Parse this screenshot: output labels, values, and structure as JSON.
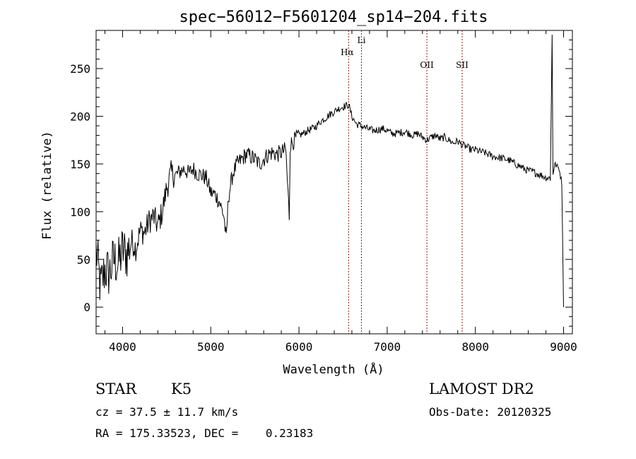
{
  "chart_data": {
    "type": "line",
    "title": "spec−56012−F5601204_sp14−204.fits",
    "xlabel": "Wavelength (Å)",
    "ylabel": "Flux (relative)",
    "xlim": [
      3700,
      9100
    ],
    "ylim": [
      -28,
      290
    ],
    "x_ticks": [
      4000,
      5000,
      6000,
      7000,
      8000,
      9000
    ],
    "y_ticks": [
      0,
      50,
      100,
      150,
      200,
      250
    ],
    "grid": false,
    "series": [
      {
        "x": [
          3700,
          3750,
          3800,
          3850,
          3900,
          3950,
          4000,
          4050,
          4100,
          4150,
          4200,
          4250,
          4300,
          4350,
          4400,
          4450,
          4500,
          4550,
          4600,
          4650,
          4700,
          4750,
          4800,
          4850,
          4900,
          4950,
          5000,
          5050,
          5100,
          5150,
          5175,
          5200,
          5250,
          5300,
          5350,
          5400,
          5450,
          5500,
          5550,
          5600,
          5650,
          5700,
          5750,
          5800,
          5850,
          5890,
          5900,
          5950,
          6000,
          6050,
          6100,
          6150,
          6200,
          6250,
          6300,
          6350,
          6400,
          6450,
          6500,
          6563,
          6600,
          6650,
          6700,
          6750,
          6800,
          6850,
          6900,
          6950,
          7000,
          7050,
          7100,
          7150,
          7200,
          7250,
          7300,
          7350,
          7400,
          7450,
          7500,
          7550,
          7600,
          7650,
          7700,
          7750,
          7800,
          7850,
          7900,
          7950,
          8000,
          8050,
          8100,
          8150,
          8200,
          8250,
          8300,
          8350,
          8400,
          8450,
          8500,
          8550,
          8600,
          8650,
          8700,
          8750,
          8800,
          8850,
          8870,
          8880,
          8900,
          8950,
          8980,
          9000
        ],
        "y": [
          60,
          20,
          40,
          35,
          50,
          45,
          60,
          55,
          70,
          62,
          80,
          78,
          90,
          95,
          85,
          100,
          125,
          140,
          138,
          142,
          145,
          140,
          145,
          140,
          138,
          135,
          120,
          118,
          110,
          95,
          70,
          115,
          140,
          150,
          155,
          160,
          158,
          155,
          150,
          155,
          160,
          162,
          160,
          162,
          165,
          95,
          170,
          175,
          180,
          182,
          185,
          187,
          190,
          195,
          198,
          202,
          205,
          208,
          210,
          212,
          200,
          192,
          190,
          188,
          186,
          185,
          186,
          187,
          185,
          182,
          182,
          183,
          184,
          182,
          180,
          182,
          178,
          175,
          178,
          180,
          176,
          178,
          175,
          172,
          174,
          170,
          168,
          165,
          165,
          163,
          162,
          160,
          158,
          157,
          156,
          155,
          153,
          150,
          148,
          145,
          143,
          142,
          140,
          138,
          136,
          135,
          285,
          140,
          150,
          145,
          130,
          0
        ]
      }
    ],
    "annotations": [
      {
        "label": "Hα",
        "x": 6563
      },
      {
        "label": "Li",
        "x": 6708
      },
      {
        "label": "OII",
        "x": 7450
      },
      {
        "label": "SII",
        "x": 7850
      }
    ]
  },
  "info": {
    "object_class": "STAR",
    "subclass": "K5",
    "survey": "LAMOST DR2",
    "redshift_line": "cz = 37.5 ± 11.7 km/s",
    "obs_date": "Obs-Date: 20120325",
    "coords_line": "RA = 175.33523, DEC =    0.23183"
  }
}
